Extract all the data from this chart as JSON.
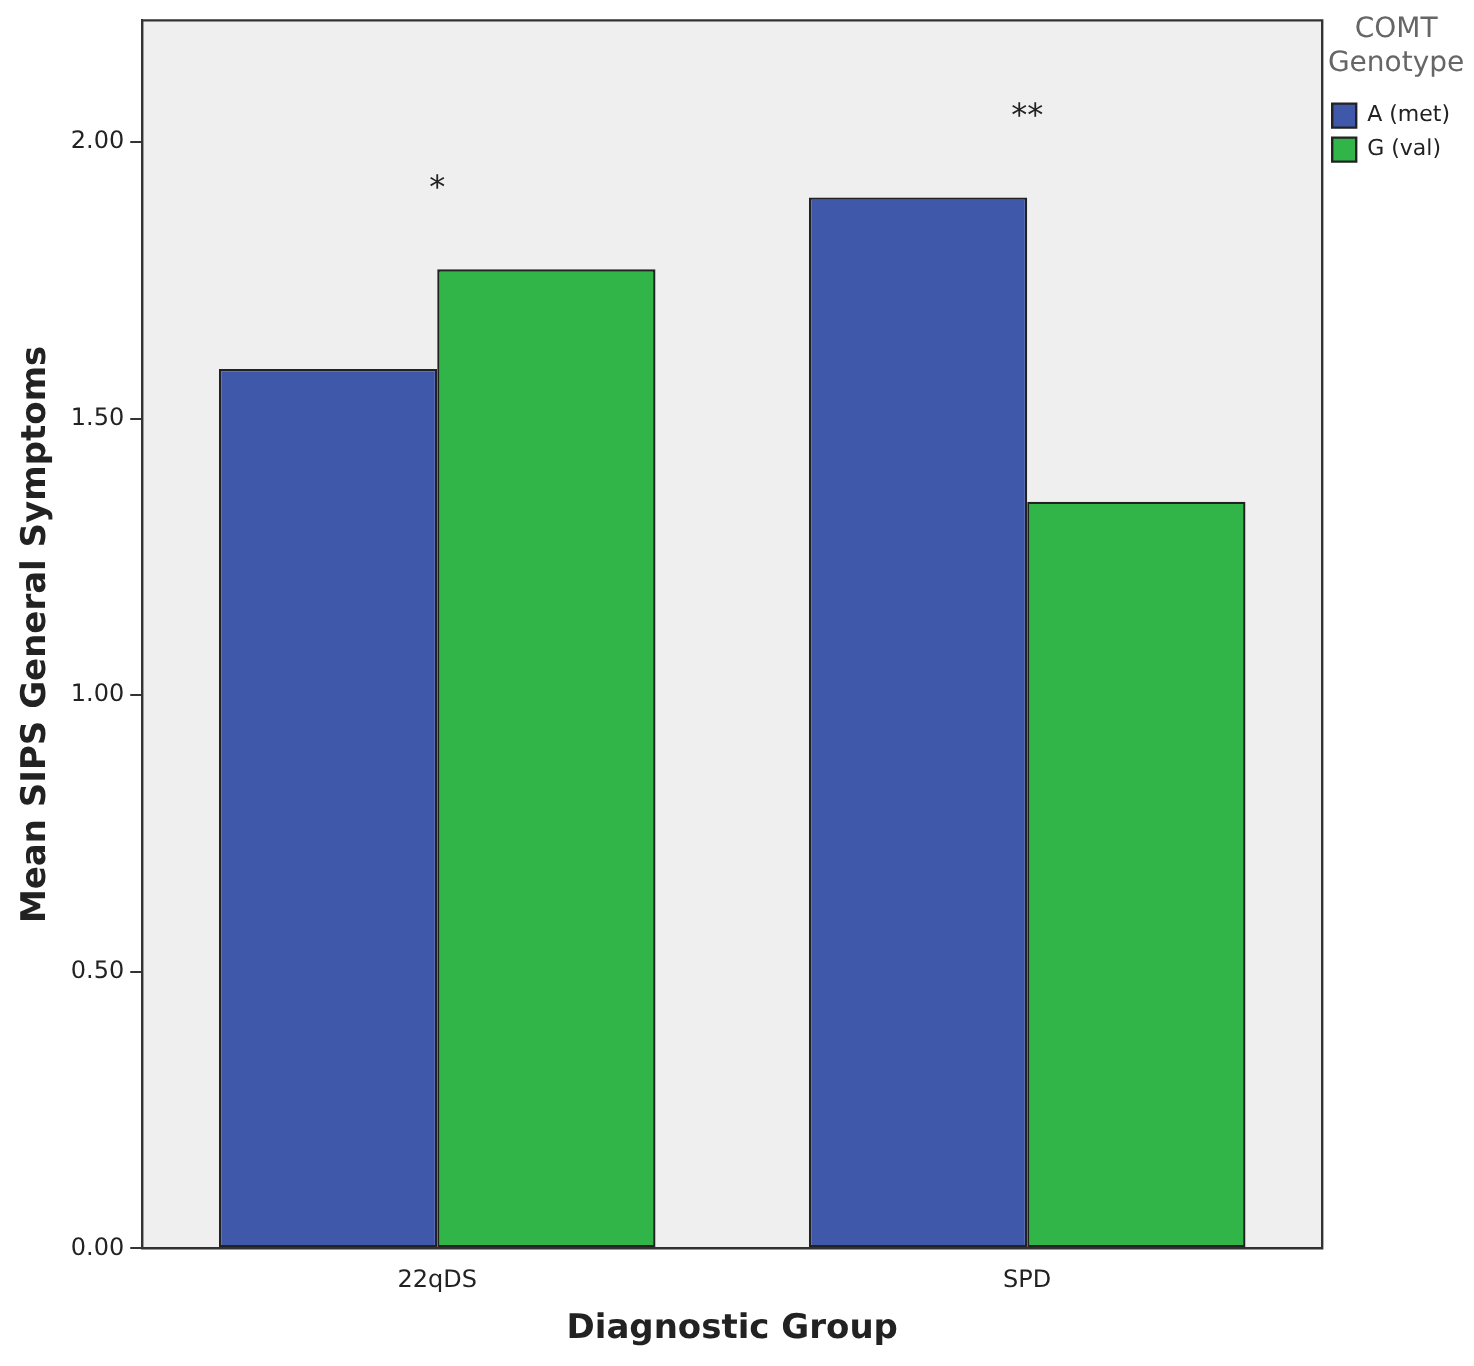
{
  "chart_data": {
    "type": "bar",
    "xlabel": "Diagnostic Group",
    "ylabel": "Mean SIPS General Symptoms",
    "legend_title": "COMT Genotype",
    "categories": [
      "22qDS",
      "SPD"
    ],
    "series": [
      {
        "name": "A (met)",
        "color": "#3f58aa",
        "values": [
          1.59,
          1.9
        ]
      },
      {
        "name": "G (val)",
        "color": "#31b549",
        "values": [
          1.77,
          1.35
        ]
      }
    ],
    "ylim": [
      0,
      2.22
    ],
    "yticks": [
      {
        "value": 0,
        "label": "0.00"
      },
      {
        "value": 0.5,
        "label": "0.50"
      },
      {
        "value": 1,
        "label": "1.00"
      },
      {
        "value": 1.5,
        "label": "1.50"
      },
      {
        "value": 2,
        "label": "2.00"
      }
    ],
    "grid": false,
    "legend": "top right",
    "annotations": [
      "*",
      "**"
    ]
  }
}
